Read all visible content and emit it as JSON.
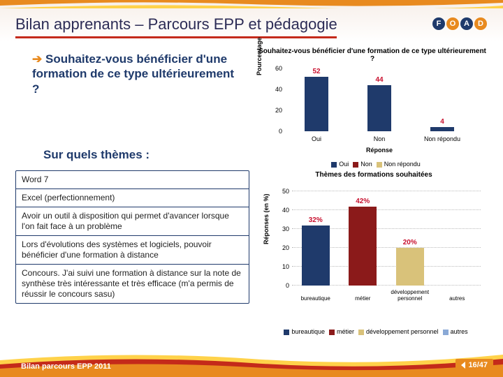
{
  "title": "Bilan apprenants – Parcours EPP et pédagogie",
  "foad": [
    "F",
    "O",
    "A",
    "D"
  ],
  "question": {
    "lead": "Souhaitez-vous",
    "bold": "bénéficier d'une formation de ce type ultérieurement ?"
  },
  "sub_title": "Sur quels thèmes :",
  "themes": [
    "Word 7",
    "Excel (perfectionnement)",
    "Avoir un outil à disposition qui permet d'avancer lorsque l'on fait face à un problème",
    "Lors d'évolutions des systèmes et logiciels, pouvoir bénéficier d'une formation à distance",
    "Concours. J'ai suivi une formation à distance sur la note de synthèse très intéressante et très efficace (m'a permis de réussir le concours sasu)"
  ],
  "chart1": {
    "type": "bar",
    "title": "Souhaitez-vous bénéficier d'une formation de ce type ultérieurement ?",
    "ylabel": "Pourcentage",
    "xlabel": "Réponse",
    "categories": [
      "Oui",
      "Non",
      "Non répondu"
    ],
    "values": [
      52,
      44,
      4
    ],
    "bar_color": "#1f3a6b",
    "value_color": "#c8102e",
    "ylim": [
      0,
      60
    ],
    "ytick_step": 20,
    "label_fontsize": 9
  },
  "chart2": {
    "type": "bar",
    "legend_top": [
      "Oui",
      "Non",
      "Non répondu"
    ],
    "legend_top_colors": [
      "#1f3a6b",
      "#8b1a1a",
      "#d9c27a"
    ],
    "title": "Thèmes des formations souhaitées",
    "ylabel": "Réponses (en %)",
    "categories": [
      "bureautique",
      "métier",
      "développement personnel",
      "autres"
    ],
    "values": [
      32,
      42,
      20,
      0
    ],
    "bar_colors": [
      "#1f3a6b",
      "#8b1a1a",
      "#d9c27a",
      "#8aa9d6"
    ],
    "ylim": [
      0,
      50
    ],
    "ytick_step": 10,
    "legend_bot": [
      "bureautique",
      "métier",
      "développement personnel",
      "autres"
    ]
  },
  "footer_text": "Bilan parcours EPP 2011",
  "page": {
    "current": "16",
    "total": "47"
  },
  "colors": {
    "accent": "#e88a1f",
    "red": "#c42a1a",
    "navy": "#1f3a6b"
  }
}
